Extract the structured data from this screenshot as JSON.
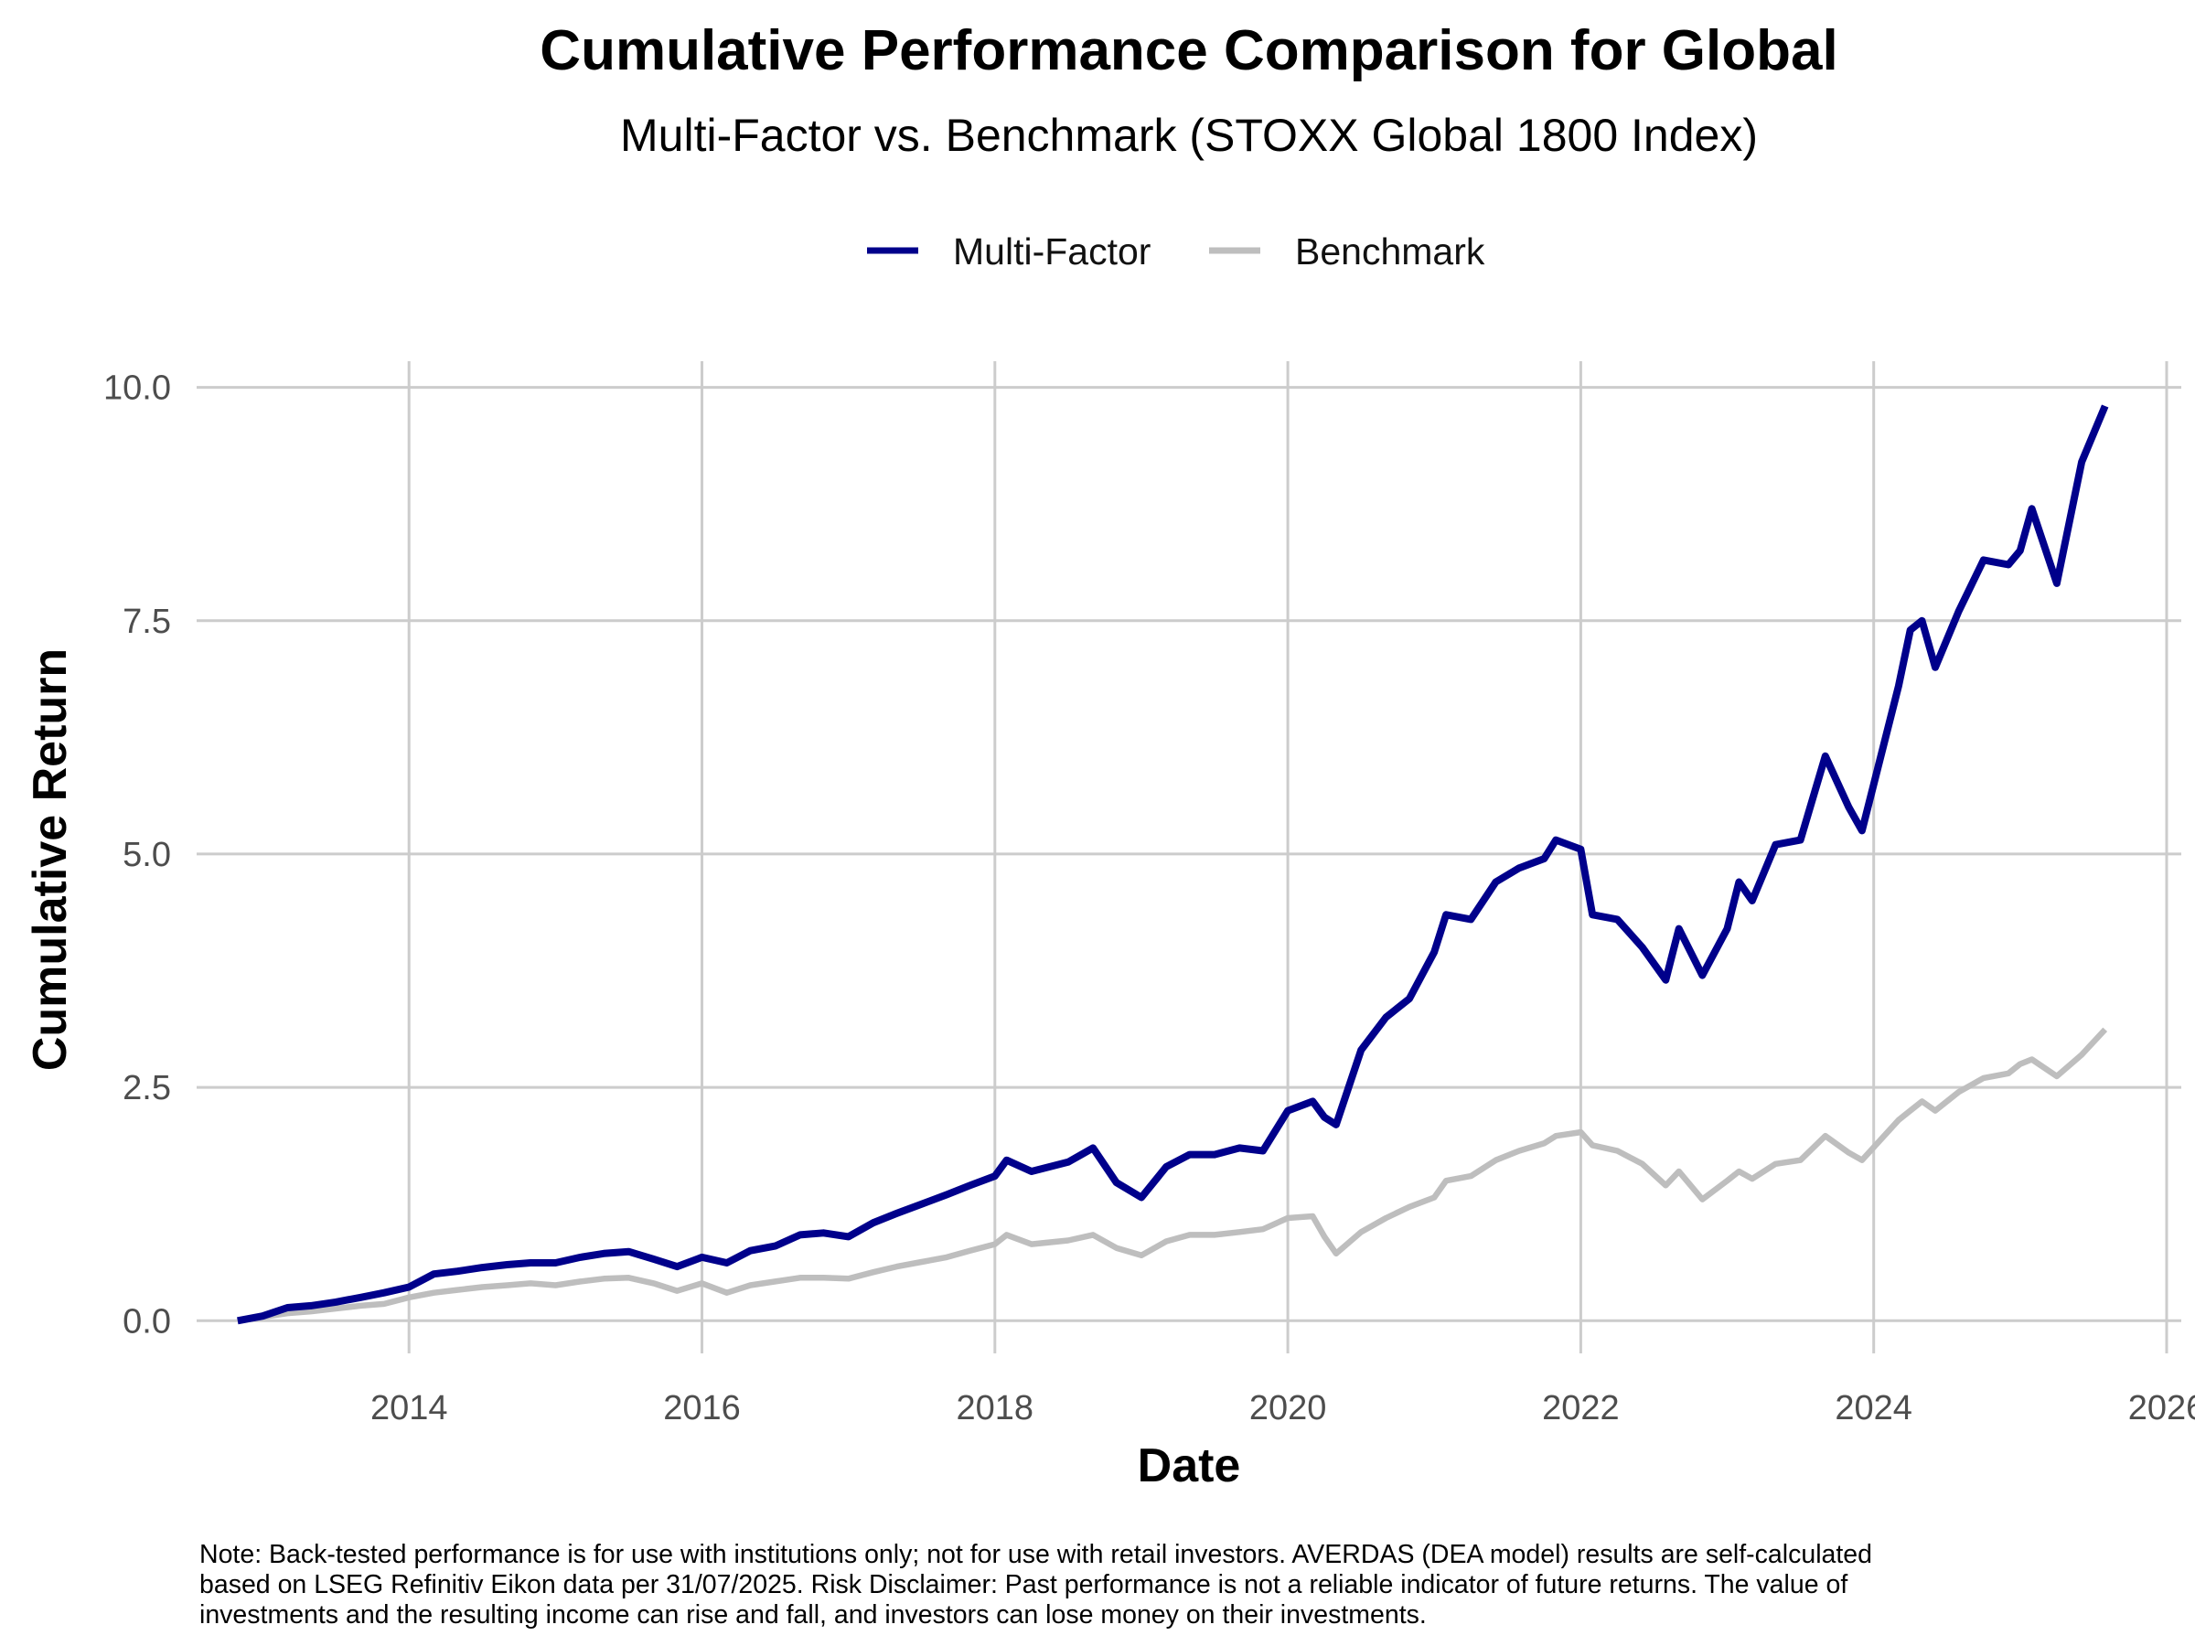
{
  "colors": {
    "multi_factor": "#00008B",
    "benchmark": "#BEBEBE",
    "grid": "#CCCCCC"
  },
  "note_lines": [
    "Note: Back-tested performance is for use with institutions only; not for use with retail investors. AVERDAS (DEA model) results are self-calculated",
    "based on LSEG Refinitiv Eikon data per 31/07/2025. Risk Disclaimer: Past performance is not a reliable indicator of future returns. The value of",
    "investments and the resulting income can rise and fall, and investors can lose money on their investments."
  ],
  "chart_data": {
    "type": "line",
    "title": "Cumulative Performance Comparison for Global",
    "subtitle": "Multi-Factor vs. Benchmark (STOXX Global 1800 Index)",
    "xlabel": "Date",
    "ylabel": "Cumulative Return",
    "xlim": [
      2012.55,
      2026.1
    ],
    "ylim": [
      -0.35,
      10.28
    ],
    "x_ticks": [
      2014,
      2016,
      2018,
      2020,
      2022,
      2024,
      2026
    ],
    "x_tick_labels": [
      "2014",
      "2016",
      "2018",
      "2020",
      "2022",
      "2024",
      "2026"
    ],
    "y_ticks": [
      0,
      2.5,
      5,
      7.5,
      10
    ],
    "y_tick_labels": [
      "0.0",
      "2.5",
      "5.0",
      "7.5",
      "10.0"
    ],
    "grid": true,
    "legend_position": "top",
    "x_unit": "year (decimal)",
    "series": [
      {
        "name": "Multi-Factor",
        "color": "#00008B",
        "points": [
          [
            2012.83,
            0.0
          ],
          [
            2013.0,
            0.05
          ],
          [
            2013.17,
            0.14
          ],
          [
            2013.33,
            0.16
          ],
          [
            2013.5,
            0.2
          ],
          [
            2013.67,
            0.25
          ],
          [
            2013.83,
            0.3
          ],
          [
            2014.0,
            0.36
          ],
          [
            2014.17,
            0.5
          ],
          [
            2014.33,
            0.53
          ],
          [
            2014.5,
            0.57
          ],
          [
            2014.67,
            0.6
          ],
          [
            2014.83,
            0.62
          ],
          [
            2015.0,
            0.62
          ],
          [
            2015.17,
            0.68
          ],
          [
            2015.33,
            0.72
          ],
          [
            2015.5,
            0.74
          ],
          [
            2015.67,
            0.66
          ],
          [
            2015.83,
            0.58
          ],
          [
            2016.0,
            0.68
          ],
          [
            2016.17,
            0.62
          ],
          [
            2016.33,
            0.75
          ],
          [
            2016.5,
            0.8
          ],
          [
            2016.67,
            0.92
          ],
          [
            2016.83,
            0.94
          ],
          [
            2017.0,
            0.9
          ],
          [
            2017.17,
            1.05
          ],
          [
            2017.33,
            1.15
          ],
          [
            2017.5,
            1.25
          ],
          [
            2017.67,
            1.35
          ],
          [
            2017.83,
            1.45
          ],
          [
            2018.0,
            1.55
          ],
          [
            2018.08,
            1.72
          ],
          [
            2018.25,
            1.6
          ],
          [
            2018.5,
            1.7
          ],
          [
            2018.67,
            1.85
          ],
          [
            2018.83,
            1.48
          ],
          [
            2019.0,
            1.32
          ],
          [
            2019.17,
            1.65
          ],
          [
            2019.33,
            1.78
          ],
          [
            2019.5,
            1.78
          ],
          [
            2019.67,
            1.85
          ],
          [
            2019.83,
            1.82
          ],
          [
            2020.0,
            2.25
          ],
          [
            2020.17,
            2.35
          ],
          [
            2020.25,
            2.18
          ],
          [
            2020.33,
            2.1
          ],
          [
            2020.5,
            2.9
          ],
          [
            2020.67,
            3.25
          ],
          [
            2020.83,
            3.45
          ],
          [
            2021.0,
            3.95
          ],
          [
            2021.08,
            4.35
          ],
          [
            2021.25,
            4.3
          ],
          [
            2021.42,
            4.7
          ],
          [
            2021.58,
            4.85
          ],
          [
            2021.75,
            4.95
          ],
          [
            2021.83,
            5.15
          ],
          [
            2022.0,
            5.05
          ],
          [
            2022.08,
            4.35
          ],
          [
            2022.25,
            4.3
          ],
          [
            2022.42,
            4.0
          ],
          [
            2022.58,
            3.65
          ],
          [
            2022.67,
            4.2
          ],
          [
            2022.83,
            3.7
          ],
          [
            2023.0,
            4.2
          ],
          [
            2023.08,
            4.7
          ],
          [
            2023.17,
            4.5
          ],
          [
            2023.33,
            5.1
          ],
          [
            2023.5,
            5.15
          ],
          [
            2023.67,
            6.05
          ],
          [
            2023.83,
            5.5
          ],
          [
            2023.92,
            5.25
          ],
          [
            2024.17,
            6.8
          ],
          [
            2024.25,
            7.4
          ],
          [
            2024.33,
            7.5
          ],
          [
            2024.42,
            7.0
          ],
          [
            2024.58,
            7.6
          ],
          [
            2024.75,
            8.15
          ],
          [
            2024.92,
            8.1
          ],
          [
            2025.0,
            8.25
          ],
          [
            2025.08,
            8.7
          ],
          [
            2025.25,
            7.9
          ],
          [
            2025.42,
            9.2
          ],
          [
            2025.58,
            9.8
          ]
        ]
      },
      {
        "name": "Benchmark",
        "color": "#BEBEBE",
        "points": [
          [
            2012.83,
            0.0
          ],
          [
            2013.0,
            0.04
          ],
          [
            2013.17,
            0.08
          ],
          [
            2013.33,
            0.1
          ],
          [
            2013.5,
            0.13
          ],
          [
            2013.67,
            0.16
          ],
          [
            2013.83,
            0.18
          ],
          [
            2014.0,
            0.25
          ],
          [
            2014.17,
            0.3
          ],
          [
            2014.33,
            0.33
          ],
          [
            2014.5,
            0.36
          ],
          [
            2014.67,
            0.38
          ],
          [
            2014.83,
            0.4
          ],
          [
            2015.0,
            0.38
          ],
          [
            2015.17,
            0.42
          ],
          [
            2015.33,
            0.45
          ],
          [
            2015.5,
            0.46
          ],
          [
            2015.67,
            0.4
          ],
          [
            2015.83,
            0.32
          ],
          [
            2016.0,
            0.4
          ],
          [
            2016.17,
            0.3
          ],
          [
            2016.33,
            0.38
          ],
          [
            2016.5,
            0.42
          ],
          [
            2016.67,
            0.46
          ],
          [
            2016.83,
            0.46
          ],
          [
            2017.0,
            0.45
          ],
          [
            2017.17,
            0.52
          ],
          [
            2017.33,
            0.58
          ],
          [
            2017.5,
            0.63
          ],
          [
            2017.67,
            0.68
          ],
          [
            2017.83,
            0.75
          ],
          [
            2018.0,
            0.82
          ],
          [
            2018.08,
            0.92
          ],
          [
            2018.25,
            0.82
          ],
          [
            2018.5,
            0.86
          ],
          [
            2018.67,
            0.92
          ],
          [
            2018.83,
            0.78
          ],
          [
            2019.0,
            0.7
          ],
          [
            2019.17,
            0.85
          ],
          [
            2019.33,
            0.92
          ],
          [
            2019.5,
            0.92
          ],
          [
            2019.67,
            0.95
          ],
          [
            2019.83,
            0.98
          ],
          [
            2020.0,
            1.1
          ],
          [
            2020.17,
            1.12
          ],
          [
            2020.25,
            0.9
          ],
          [
            2020.33,
            0.72
          ],
          [
            2020.5,
            0.95
          ],
          [
            2020.67,
            1.1
          ],
          [
            2020.83,
            1.22
          ],
          [
            2021.0,
            1.32
          ],
          [
            2021.08,
            1.5
          ],
          [
            2021.25,
            1.55
          ],
          [
            2021.42,
            1.72
          ],
          [
            2021.58,
            1.82
          ],
          [
            2021.75,
            1.9
          ],
          [
            2021.83,
            1.98
          ],
          [
            2022.0,
            2.02
          ],
          [
            2022.08,
            1.88
          ],
          [
            2022.25,
            1.82
          ],
          [
            2022.42,
            1.68
          ],
          [
            2022.58,
            1.45
          ],
          [
            2022.67,
            1.6
          ],
          [
            2022.83,
            1.3
          ],
          [
            2023.0,
            1.5
          ],
          [
            2023.08,
            1.6
          ],
          [
            2023.17,
            1.52
          ],
          [
            2023.33,
            1.68
          ],
          [
            2023.5,
            1.72
          ],
          [
            2023.67,
            1.98
          ],
          [
            2023.83,
            1.8
          ],
          [
            2023.92,
            1.72
          ],
          [
            2024.17,
            2.15
          ],
          [
            2024.25,
            2.25
          ],
          [
            2024.33,
            2.35
          ],
          [
            2024.42,
            2.25
          ],
          [
            2024.58,
            2.45
          ],
          [
            2024.75,
            2.6
          ],
          [
            2024.92,
            2.65
          ],
          [
            2025.0,
            2.75
          ],
          [
            2025.08,
            2.8
          ],
          [
            2025.25,
            2.62
          ],
          [
            2025.42,
            2.85
          ],
          [
            2025.58,
            3.12
          ]
        ]
      }
    ]
  }
}
